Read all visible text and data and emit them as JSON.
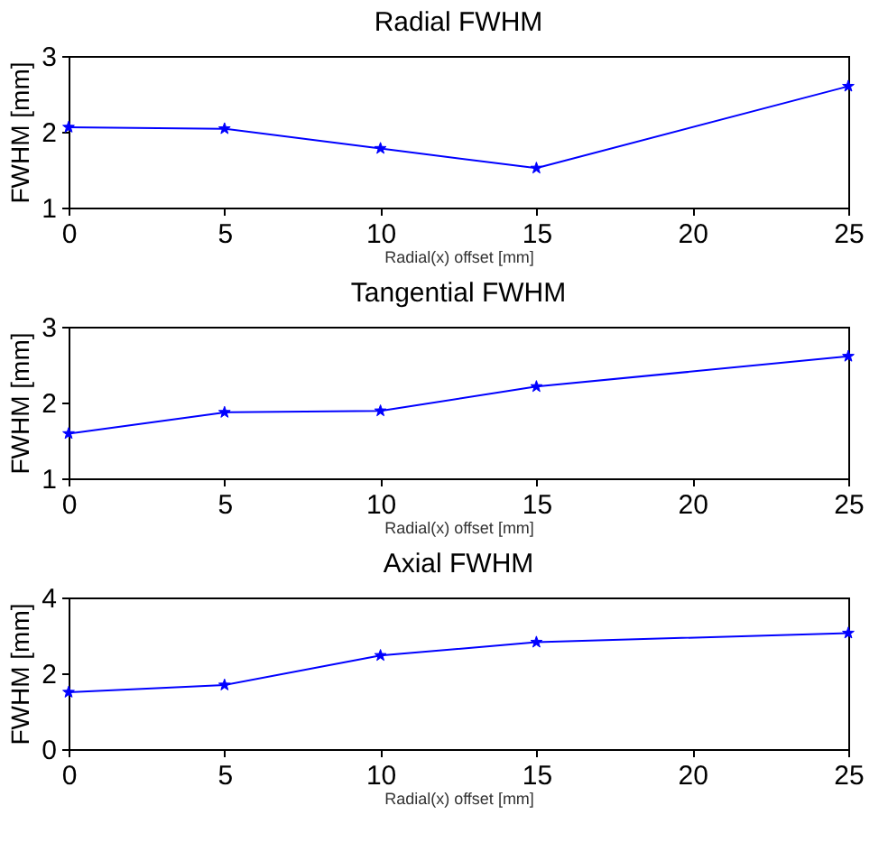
{
  "chart_data": [
    {
      "type": "line",
      "title": "Radial FWHM",
      "xlabel": "Radial(x) offset [mm]",
      "ylabel": "FWHM [mm]",
      "x": [
        0,
        5,
        10,
        15,
        25
      ],
      "series": [
        {
          "color": "#0000ff",
          "values": [
            2.06,
            2.04,
            1.78,
            1.52,
            2.6
          ]
        }
      ],
      "xlim": [
        0,
        25
      ],
      "xticks": [
        0,
        5,
        10,
        15,
        20,
        25
      ],
      "ylim": [
        1,
        3
      ],
      "yticks": [
        1,
        2,
        3
      ],
      "marker": "star",
      "line_style": "solid"
    },
    {
      "type": "line",
      "title": "Tangential FWHM",
      "xlabel": "Radial(x) offset [mm]",
      "ylabel": "FWHM [mm]",
      "x": [
        0,
        5,
        10,
        15,
        25
      ],
      "series": [
        {
          "color": "#0000ff",
          "values": [
            1.59,
            1.87,
            1.89,
            2.21,
            2.61
          ]
        }
      ],
      "xlim": [
        0,
        25
      ],
      "xticks": [
        0,
        5,
        10,
        15,
        20,
        25
      ],
      "ylim": [
        1,
        3
      ],
      "yticks": [
        1,
        2,
        3
      ],
      "marker": "star",
      "line_style": "solid"
    },
    {
      "type": "line",
      "title": "Axial FWHM",
      "xlabel": "Radial(x) offset [mm]",
      "ylabel": "FWHM [mm]",
      "x": [
        0,
        5,
        10,
        15,
        25
      ],
      "series": [
        {
          "color": "#0000ff",
          "values": [
            1.5,
            1.69,
            2.47,
            2.82,
            3.06
          ]
        }
      ],
      "xlim": [
        0,
        25
      ],
      "xticks": [
        0,
        5,
        10,
        15,
        20,
        25
      ],
      "ylim": [
        0,
        4
      ],
      "yticks": [
        0,
        2,
        4
      ],
      "marker": "star",
      "line_style": "solid"
    }
  ]
}
